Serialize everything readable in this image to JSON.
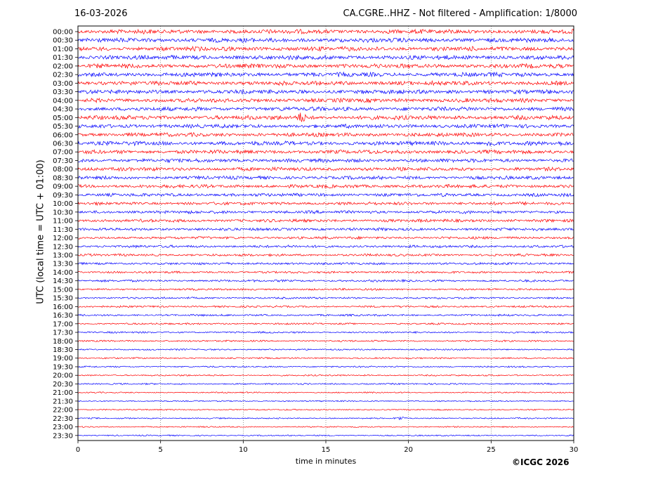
{
  "header": {
    "date": "16-03-2026",
    "title": "CA.CGRE..HHZ - Not filtered - Amplification: 1/8000"
  },
  "footer": {
    "copyright": "©ICGC 2026"
  },
  "chart_data": {
    "type": "line",
    "title": "CA.CGRE..HHZ - Not filtered - Amplification: 1/8000",
    "xlabel": "time in minutes",
    "ylabel": "UTC (local time = UTC + 01:00)",
    "xlim": [
      0,
      30
    ],
    "x_ticks": [
      0,
      5,
      10,
      15,
      20,
      25,
      30
    ],
    "grid": "vertical dotted lines at x ticks",
    "series_colors": [
      "#ff0000",
      "#0000ff"
    ],
    "color_pattern": "alternating per row: red, blue, red, blue...",
    "row_labels": [
      "00:00",
      "00:30",
      "01:00",
      "01:30",
      "02:00",
      "02:30",
      "03:00",
      "03:30",
      "04:00",
      "04:30",
      "05:00",
      "05:30",
      "06:00",
      "06:30",
      "07:00",
      "07:30",
      "08:00",
      "08:30",
      "09:00",
      "09:30",
      "10:00",
      "10:30",
      "11:00",
      "11:30",
      "12:00",
      "12:30",
      "13:00",
      "13:30",
      "14:00",
      "14:30",
      "15:00",
      "15:30",
      "16:00",
      "16:30",
      "17:00",
      "17:30",
      "18:00",
      "18:30",
      "19:00",
      "19:30",
      "20:00",
      "20:30",
      "21:00",
      "21:30",
      "22:00",
      "22:30",
      "23:00",
      "23:30"
    ],
    "row_amplitude": [
      1.0,
      1.0,
      1.0,
      1.0,
      1.0,
      1.0,
      1.0,
      0.95,
      0.95,
      0.95,
      1.0,
      0.9,
      0.9,
      0.95,
      0.9,
      0.85,
      0.85,
      0.8,
      0.8,
      0.75,
      0.7,
      0.7,
      0.7,
      0.65,
      0.6,
      0.6,
      0.55,
      0.55,
      0.5,
      0.5,
      0.45,
      0.45,
      0.45,
      0.45,
      0.4,
      0.4,
      0.4,
      0.35,
      0.35,
      0.35,
      0.35,
      0.35,
      0.3,
      0.3,
      0.3,
      0.3,
      0.3,
      0.3
    ],
    "events": [
      {
        "row": "05:00",
        "minute": 13.5,
        "amplitude": 1.6
      },
      {
        "row": "06:30",
        "minute": 25.0,
        "amplitude": 1.4
      },
      {
        "row": "22:30",
        "minute": 19.5,
        "amplitude": 2.0
      }
    ]
  }
}
